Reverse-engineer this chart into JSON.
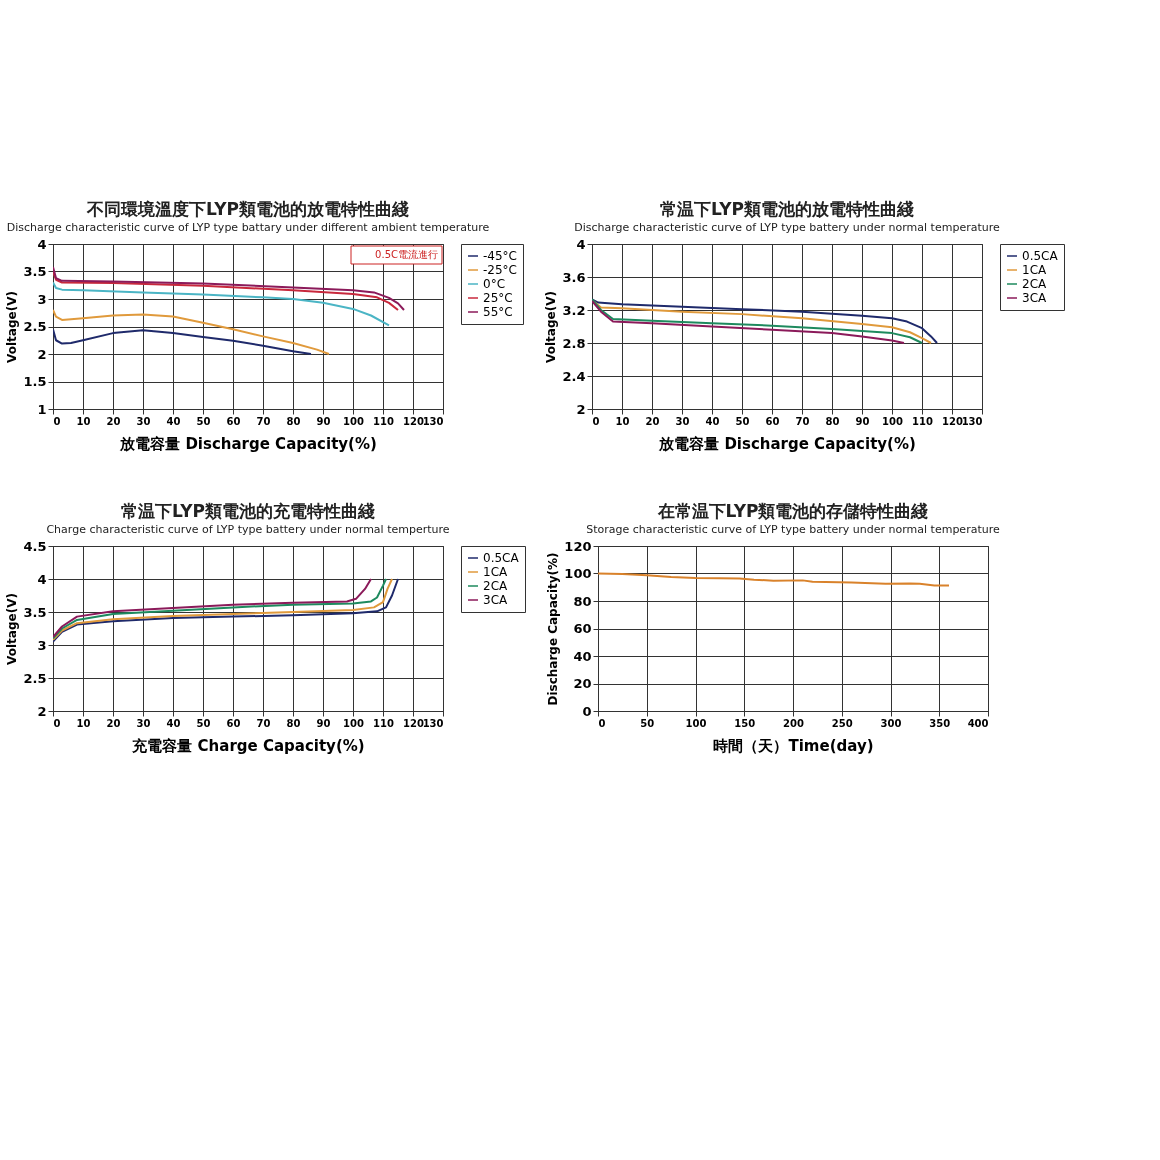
{
  "chart_data": [
    {
      "type": "line",
      "title": "不同環境溫度下LYP類電池的放電特性曲綫",
      "subtitle": "Discharge characteristic curve of LYP type battary under different ambient temperature",
      "xlabel": "放電容量 Discharge Capacity(%)",
      "ylabel": "Voltage(V)",
      "xlim": [
        0,
        130
      ],
      "xticks": [
        0,
        10,
        20,
        30,
        40,
        50,
        60,
        70,
        80,
        90,
        100,
        110,
        120,
        130
      ],
      "ylim": [
        1,
        4
      ],
      "yticks": [
        1,
        1.5,
        2,
        2.5,
        3,
        3.5,
        4
      ],
      "grid": true,
      "legend": "right",
      "annotations": [
        "0.5C電流進行"
      ],
      "series": [
        {
          "name": "-45°C",
          "color": "#1f2a6b",
          "x": [
            0,
            1,
            3,
            6,
            10,
            20,
            30,
            40,
            50,
            60,
            70,
            80,
            86
          ],
          "values": [
            2.45,
            2.25,
            2.19,
            2.2,
            2.25,
            2.38,
            2.43,
            2.38,
            2.31,
            2.24,
            2.15,
            2.05,
            2.0
          ]
        },
        {
          "name": "-25°C",
          "color": "#e09a3c",
          "x": [
            0,
            1,
            3,
            10,
            20,
            30,
            40,
            50,
            60,
            70,
            80,
            88,
            92
          ],
          "values": [
            2.8,
            2.68,
            2.62,
            2.65,
            2.7,
            2.72,
            2.68,
            2.57,
            2.45,
            2.32,
            2.2,
            2.08,
            2.0
          ]
        },
        {
          "name": "0°C",
          "color": "#4bb5c5",
          "x": [
            0,
            1,
            3,
            10,
            30,
            50,
            70,
            80,
            90,
            100,
            106,
            112
          ],
          "values": [
            3.3,
            3.2,
            3.17,
            3.16,
            3.12,
            3.08,
            3.03,
            3.0,
            2.93,
            2.82,
            2.7,
            2.52
          ]
        },
        {
          "name": "25°C",
          "color": "#c8283c",
          "x": [
            0,
            1,
            3,
            20,
            50,
            80,
            100,
            108,
            112,
            115
          ],
          "values": [
            3.5,
            3.35,
            3.3,
            3.29,
            3.24,
            3.16,
            3.09,
            3.03,
            2.93,
            2.8
          ]
        },
        {
          "name": "55°C",
          "color": "#8b1a5a",
          "x": [
            0,
            1,
            3,
            20,
            50,
            80,
            100,
            107,
            112,
            115,
            117
          ],
          "values": [
            3.58,
            3.38,
            3.33,
            3.32,
            3.28,
            3.21,
            3.16,
            3.12,
            3.02,
            2.92,
            2.8
          ]
        }
      ]
    },
    {
      "type": "line",
      "title": "常温下LYP類電池的放電特性曲綫",
      "subtitle": "Discharge characteristic curve of LYP  type battery under normal temperature",
      "xlabel": "放電容量 Discharge Capacity(%)",
      "ylabel": "Voltage(V)",
      "xlim": [
        0,
        130
      ],
      "xticks": [
        0,
        10,
        20,
        30,
        40,
        50,
        60,
        70,
        80,
        90,
        100,
        110,
        120,
        130
      ],
      "ylim": [
        2,
        4
      ],
      "yticks": [
        2,
        2.4,
        2.8,
        3.2,
        3.6,
        4
      ],
      "grid": true,
      "legend": "right",
      "series": [
        {
          "name": "0.5CA",
          "color": "#1f2a6b",
          "x": [
            0,
            2,
            10,
            30,
            50,
            70,
            90,
            100,
            105,
            110,
            113,
            115
          ],
          "values": [
            3.33,
            3.29,
            3.27,
            3.24,
            3.21,
            3.18,
            3.13,
            3.1,
            3.06,
            2.98,
            2.88,
            2.8
          ]
        },
        {
          "name": "1CA",
          "color": "#e09a3c",
          "x": [
            0,
            3,
            10,
            30,
            50,
            70,
            90,
            100,
            106,
            110,
            113
          ],
          "values": [
            3.32,
            3.23,
            3.22,
            3.18,
            3.15,
            3.1,
            3.03,
            2.99,
            2.93,
            2.86,
            2.8
          ]
        },
        {
          "name": "2CA",
          "color": "#1e8a5e",
          "x": [
            0,
            3,
            7,
            20,
            40,
            60,
            80,
            100,
            106,
            110
          ],
          "values": [
            3.33,
            3.2,
            3.09,
            3.07,
            3.04,
            3.01,
            2.97,
            2.92,
            2.87,
            2.8
          ]
        },
        {
          "name": "3CA",
          "color": "#8b1a5a",
          "x": [
            0,
            3,
            7,
            20,
            40,
            60,
            80,
            90,
            100,
            104
          ],
          "values": [
            3.31,
            3.18,
            3.06,
            3.04,
            3.0,
            2.96,
            2.92,
            2.88,
            2.83,
            2.8
          ]
        }
      ]
    },
    {
      "type": "line",
      "title": "常温下LYP類電池的充電特性曲綫",
      "subtitle": "Charge characteristic curve of LYP type battery under normal temperture",
      "xlabel": "充電容量 Charge Capacity(%)",
      "ylabel": "Voltage(V)",
      "xlim": [
        0,
        130
      ],
      "xticks": [
        0,
        10,
        20,
        30,
        40,
        50,
        60,
        70,
        80,
        90,
        100,
        110,
        120,
        130
      ],
      "ylim": [
        2,
        4.5
      ],
      "yticks": [
        2,
        2.5,
        3,
        3.5,
        4,
        4.5
      ],
      "grid": true,
      "legend": "right",
      "series": [
        {
          "name": "0.5CA",
          "color": "#1f2a6b",
          "x": [
            0,
            3,
            8,
            20,
            40,
            60,
            80,
            100,
            108,
            111,
            113,
            115
          ],
          "values": [
            3.05,
            3.2,
            3.31,
            3.36,
            3.41,
            3.43,
            3.45,
            3.48,
            3.51,
            3.57,
            3.75,
            4.0
          ]
        },
        {
          "name": "1CA",
          "color": "#e09a3c",
          "x": [
            0,
            3,
            8,
            20,
            40,
            60,
            80,
            100,
            107,
            110,
            111.5,
            113
          ],
          "values": [
            3.08,
            3.22,
            3.33,
            3.39,
            3.44,
            3.47,
            3.5,
            3.53,
            3.57,
            3.65,
            3.85,
            4.0
          ]
        },
        {
          "name": "2CA",
          "color": "#1e8a5e",
          "x": [
            0,
            3,
            8,
            20,
            40,
            60,
            80,
            100,
            106,
            108,
            110,
            111
          ],
          "values": [
            3.1,
            3.25,
            3.38,
            3.47,
            3.52,
            3.57,
            3.61,
            3.63,
            3.66,
            3.72,
            3.9,
            4.0
          ]
        },
        {
          "name": "3CA",
          "color": "#8b1a5a",
          "x": [
            0,
            3,
            8,
            20,
            40,
            60,
            80,
            98,
            101,
            104,
            106
          ],
          "values": [
            3.12,
            3.28,
            3.43,
            3.51,
            3.56,
            3.61,
            3.64,
            3.66,
            3.7,
            3.85,
            4.0
          ]
        }
      ]
    },
    {
      "type": "line",
      "title": "在常温下LYP類電池的存儲特性曲綫",
      "subtitle": "Storage characteristic curve of LYP type battery under normal temperature",
      "xlabel": "時間（天）Time(day)",
      "ylabel": "Discharge Capacity(%)",
      "xlim": [
        0,
        400
      ],
      "xticks": [
        0,
        50,
        100,
        150,
        200,
        250,
        300,
        350,
        400
      ],
      "ylim": [
        0,
        120
      ],
      "yticks": [
        0,
        20,
        40,
        60,
        80,
        100,
        120
      ],
      "grid": true,
      "series": [
        {
          "color": "#d9822b",
          "x": [
            0,
            25,
            50,
            75,
            100,
            125,
            145,
            160,
            180,
            210,
            220,
            260,
            295,
            320,
            330,
            345,
            360
          ],
          "values": [
            100,
            99.7,
            98.8,
            97.5,
            96.8,
            96.5,
            96.3,
            95.5,
            94.8,
            95,
            94,
            93.5,
            92.5,
            92.8,
            92.5,
            91.2,
            91.3
          ]
        }
      ]
    }
  ]
}
